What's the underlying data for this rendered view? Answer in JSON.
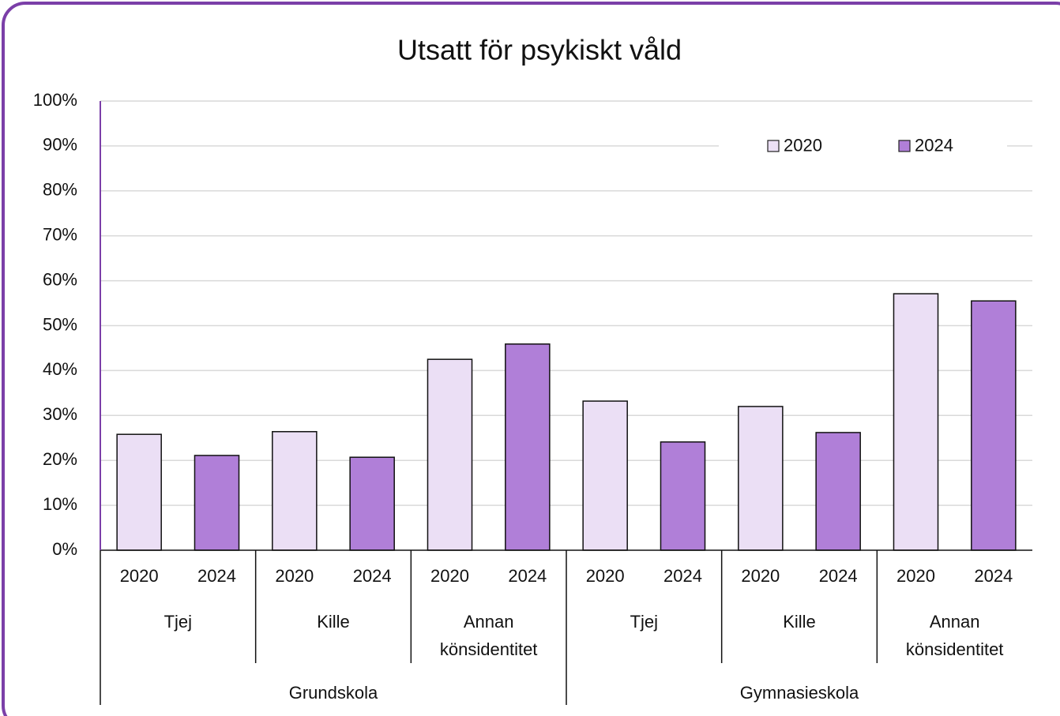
{
  "chart_data": {
    "type": "bar",
    "title": "Utsatt för psykiskt våld",
    "groups": [
      {
        "name": "Grundskola",
        "categories": [
          "Tjej",
          "Kille",
          "Annan könsidentitet"
        ]
      },
      {
        "name": "Gymnasieskola",
        "categories": [
          "Tjej",
          "Kille",
          "Annan könsidentitet"
        ]
      }
    ],
    "series": [
      {
        "name": "2020",
        "color": "#ebdff5",
        "values": [
          25.8,
          26.4,
          42.5,
          33.2,
          32.0,
          57.1
        ]
      },
      {
        "name": "2024",
        "color": "#b07fd8",
        "values": [
          21.1,
          20.7,
          45.9,
          24.1,
          26.2,
          55.5
        ]
      }
    ],
    "ylim": [
      0,
      100
    ],
    "yticks": [
      {
        "value": 0,
        "label": "0%"
      },
      {
        "value": 10,
        "label": "10%"
      },
      {
        "value": 20,
        "label": "20%"
      },
      {
        "value": 30,
        "label": "30%"
      },
      {
        "value": 40,
        "label": "40%"
      },
      {
        "value": 50,
        "label": "50%"
      },
      {
        "value": 60,
        "label": "60%"
      },
      {
        "value": 70,
        "label": "70%"
      },
      {
        "value": 80,
        "label": "80%"
      },
      {
        "value": 90,
        "label": "90%"
      },
      {
        "value": 100,
        "label": "100%"
      }
    ],
    "grid": true,
    "legend": "top-right"
  }
}
